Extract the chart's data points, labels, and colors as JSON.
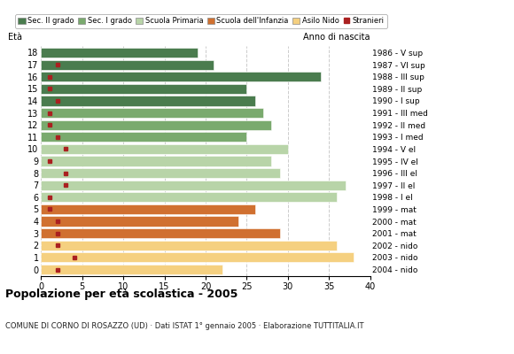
{
  "ages": [
    18,
    17,
    16,
    15,
    14,
    13,
    12,
    11,
    10,
    9,
    8,
    7,
    6,
    5,
    4,
    3,
    2,
    1,
    0
  ],
  "values": [
    19,
    21,
    34,
    25,
    26,
    27,
    28,
    25,
    30,
    28,
    29,
    37,
    36,
    26,
    24,
    29,
    36,
    38,
    22
  ],
  "foreigners": [
    0,
    2,
    1,
    1,
    2,
    1,
    1,
    2,
    3,
    1,
    3,
    3,
    1,
    1,
    2,
    2,
    2,
    4,
    2
  ],
  "bar_colors": [
    "#4a7c4e",
    "#4a7c4e",
    "#4a7c4e",
    "#4a7c4e",
    "#4a7c4e",
    "#7aaa6e",
    "#7aaa6e",
    "#7aaa6e",
    "#b8d4a8",
    "#b8d4a8",
    "#b8d4a8",
    "#b8d4a8",
    "#b8d4a8",
    "#d07030",
    "#d07030",
    "#d07030",
    "#f5d080",
    "#f5d080",
    "#f5d080"
  ],
  "right_labels": [
    "1986 - V sup",
    "1987 - VI sup",
    "1988 - III sup",
    "1989 - II sup",
    "1990 - I sup",
    "1991 - III med",
    "1992 - II med",
    "1993 - I med",
    "1994 - V el",
    "1995 - IV el",
    "1996 - III el",
    "1997 - II el",
    "1998 - I el",
    "1999 - mat",
    "2000 - mat",
    "2001 - mat",
    "2002 - nido",
    "2003 - nido",
    "2004 - nido"
  ],
  "legend_labels": [
    "Sec. II grado",
    "Sec. I grado",
    "Scuola Primaria",
    "Scuola dell'Infanzia",
    "Asilo Nido",
    "Stranieri"
  ],
  "legend_colors": [
    "#4a7c4e",
    "#7aaa6e",
    "#b8d4a8",
    "#d07030",
    "#f5d080",
    "#aa2020"
  ],
  "title": "Popolazione per età scolastica - 2005",
  "subtitle": "COMUNE DI CORNO DI ROSAZZO (UD) · Dati ISTAT 1° gennaio 2005 · Elaborazione TUTTITALIA.IT",
  "eta_label": "Età",
  "anno_label": "Anno di nascita",
  "xlim": [
    0,
    40
  ],
  "xticks": [
    0,
    5,
    10,
    15,
    20,
    25,
    30,
    35,
    40
  ],
  "bar_height": 0.82,
  "foreigner_color": "#aa2020",
  "bg_color": "#ffffff",
  "grid_color": "#cccccc"
}
